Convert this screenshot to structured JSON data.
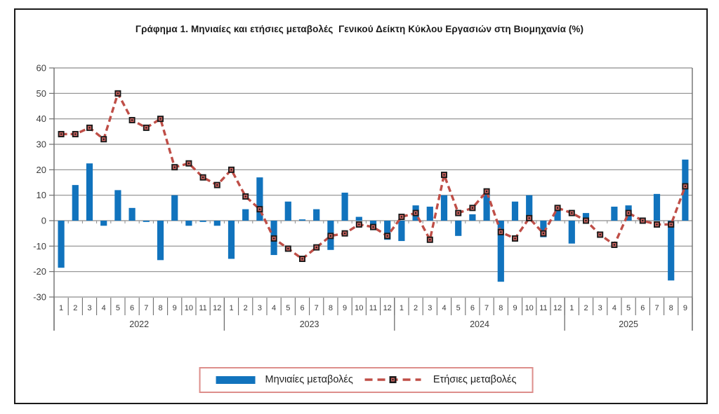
{
  "title": "Γράφημα 1. Μηνιαίες και ετήσιες μεταβολές  Γενικού Δείκτη Κύκλου Εργασιών στη Βιομηχανία (%)",
  "legend": {
    "monthly": "Μηνιαίες μεταβολές",
    "annual": "Ετήσιες μεταβολές",
    "position": "bottom"
  },
  "colors": {
    "bar": "#1173bd",
    "line": "#bf4e47",
    "marker_fill": "#d26561",
    "marker_edge": "#1a1a1a",
    "grid": "#8c8c8c",
    "axis": "#6e6e6e",
    "text": "#3c3c3c",
    "legend_border": "#dd8e8b",
    "frame": "#1b1b1b"
  },
  "chart_data": {
    "type": "bar",
    "title": "Γράφημα 1. Μηνιαίες και ετήσιες μεταβολές  Γενικού Δείκτη Κύκλου Εργασιών στη Βιομηχανία (%)",
    "xlabel": "",
    "ylabel": "",
    "ylim": [
      -30,
      60
    ],
    "ytick_step": 10,
    "yticks": [
      60,
      50,
      40,
      30,
      20,
      10,
      0,
      -10,
      -20,
      -30
    ],
    "grid": true,
    "legend_position": "bottom",
    "years": [
      {
        "label": "2022",
        "months": [
          "1",
          "2",
          "3",
          "4",
          "5",
          "6",
          "7",
          "8",
          "9",
          "10",
          "11",
          "12"
        ]
      },
      {
        "label": "2023",
        "months": [
          "1",
          "2",
          "3",
          "4",
          "5",
          "6",
          "7",
          "8",
          "9",
          "10",
          "11",
          "12"
        ]
      },
      {
        "label": "2024",
        "months": [
          "1",
          "2",
          "3",
          "4",
          "5",
          "6",
          "7",
          "8",
          "9",
          "10",
          "11",
          "12"
        ]
      },
      {
        "label": "2025",
        "months": [
          "1",
          "2",
          "3",
          "4",
          "5",
          "6",
          "7",
          "8",
          "9"
        ]
      }
    ],
    "series": [
      {
        "name": "Μηνιαίες μεταβολές",
        "type": "bar",
        "values": [
          -18.5,
          14,
          22.5,
          -2,
          12,
          5,
          -0.5,
          -15.5,
          10,
          -2,
          -0.5,
          -2,
          -15,
          4.5,
          17,
          -13.5,
          7.5,
          0.5,
          4.5,
          -11.5,
          11,
          1.5,
          -3,
          -7.5,
          -8,
          6,
          5.5,
          10,
          -6,
          2.5,
          10.5,
          -24,
          7.5,
          10,
          -6.5,
          4,
          -9,
          3,
          0,
          5.5,
          6,
          0,
          10.5,
          -23.5,
          24
        ]
      },
      {
        "name": "Ετήσιες μεταβολές",
        "type": "line",
        "values": [
          34,
          34,
          36.5,
          32,
          50,
          39.5,
          36.5,
          40,
          21,
          22.5,
          17,
          14,
          20,
          9.5,
          4.5,
          -7,
          -11,
          -15,
          -10.5,
          -6,
          -5,
          -1.5,
          -2.5,
          -6,
          1.5,
          3,
          -7.5,
          18,
          3,
          5,
          11.5,
          -4.5,
          -7,
          1,
          -5,
          5,
          3,
          0,
          -5.5,
          -9.5,
          3,
          0,
          -1.5,
          -1.5,
          13.5
        ]
      }
    ]
  }
}
